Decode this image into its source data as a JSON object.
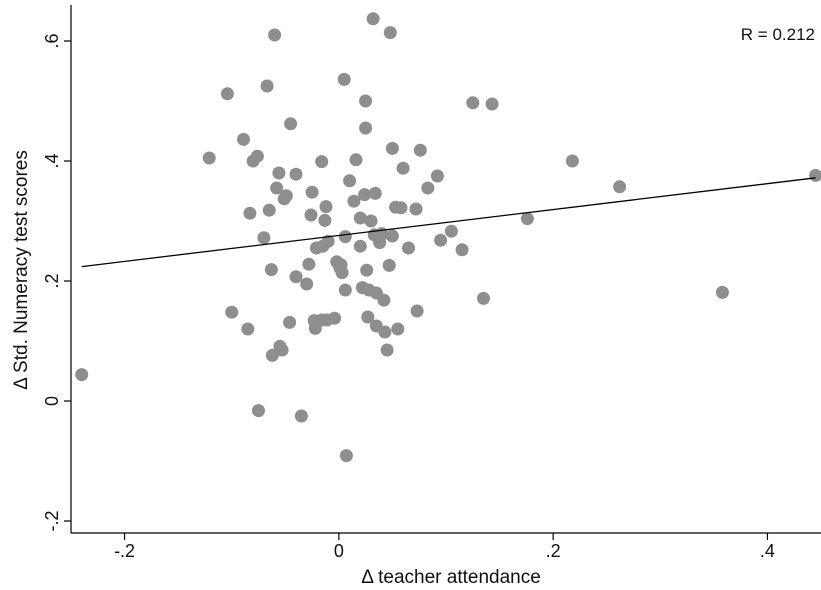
{
  "chart_data": {
    "type": "scatter",
    "title": "",
    "xlabel": "Δ teacher attendance",
    "ylabel": "Δ Std. Numeracy test scores",
    "annotation": "R = 0.212",
    "xlim": [
      -0.25,
      0.45
    ],
    "ylim": [
      -0.22,
      0.66
    ],
    "xticks": [
      -0.2,
      0,
      0.2,
      0.4
    ],
    "xtick_labels": [
      "-.2",
      "0",
      ".2",
      ".4"
    ],
    "yticks": [
      -0.2,
      0,
      0.2,
      0.4,
      0.6
    ],
    "ytick_labels": [
      "-.2",
      "0",
      ".2",
      ".4",
      ".6"
    ],
    "grid": false,
    "legend": "none",
    "colors": {
      "points": "#8e8e8e",
      "fit_line": "#000000",
      "axis": "#000000"
    },
    "fit_line": {
      "x": [
        -0.24,
        0.445
      ],
      "y": [
        0.224,
        0.372
      ]
    },
    "points": [
      [
        -0.24,
        0.044
      ],
      [
        -0.121,
        0.405
      ],
      [
        -0.104,
        0.512
      ],
      [
        -0.1,
        0.148
      ],
      [
        -0.089,
        0.436
      ],
      [
        -0.085,
        0.12
      ],
      [
        -0.083,
        0.313
      ],
      [
        -0.08,
        0.4
      ],
      [
        -0.076,
        0.408
      ],
      [
        -0.075,
        -0.016
      ],
      [
        -0.07,
        0.272
      ],
      [
        -0.067,
        0.525
      ],
      [
        -0.065,
        0.318
      ],
      [
        -0.063,
        0.219
      ],
      [
        -0.062,
        0.076
      ],
      [
        -0.06,
        0.61
      ],
      [
        -0.058,
        0.355
      ],
      [
        -0.056,
        0.38
      ],
      [
        -0.055,
        0.091
      ],
      [
        -0.053,
        0.085
      ],
      [
        -0.051,
        0.337
      ],
      [
        -0.049,
        0.342
      ],
      [
        -0.046,
        0.131
      ],
      [
        -0.045,
        0.462
      ],
      [
        -0.04,
        0.207
      ],
      [
        -0.04,
        0.378
      ],
      [
        -0.035,
        -0.025
      ],
      [
        -0.03,
        0.195
      ],
      [
        -0.028,
        0.228
      ],
      [
        -0.026,
        0.31
      ],
      [
        -0.025,
        0.348
      ],
      [
        -0.023,
        0.134
      ],
      [
        -0.022,
        0.121
      ],
      [
        -0.021,
        0.255
      ],
      [
        -0.016,
        0.399
      ],
      [
        -0.016,
        0.135
      ],
      [
        -0.015,
        0.258
      ],
      [
        -0.013,
        0.301
      ],
      [
        -0.012,
        0.324
      ],
      [
        -0.011,
        0.135
      ],
      [
        -0.01,
        0.266
      ],
      [
        -0.004,
        0.138
      ],
      [
        -0.002,
        0.232
      ],
      [
        0.001,
        0.222
      ],
      [
        0.002,
        0.227
      ],
      [
        0.003,
        0.214
      ],
      [
        0.005,
        0.536
      ],
      [
        0.006,
        0.274
      ],
      [
        0.006,
        0.185
      ],
      [
        0.007,
        -0.091
      ],
      [
        0.01,
        0.367
      ],
      [
        0.014,
        0.333
      ],
      [
        0.016,
        0.402
      ],
      [
        0.02,
        0.258
      ],
      [
        0.02,
        0.305
      ],
      [
        0.022,
        0.189
      ],
      [
        0.024,
        0.344
      ],
      [
        0.025,
        0.5
      ],
      [
        0.025,
        0.455
      ],
      [
        0.026,
        0.218
      ],
      [
        0.027,
        0.14
      ],
      [
        0.028,
        0.185
      ],
      [
        0.03,
        0.3
      ],
      [
        0.032,
        0.637
      ],
      [
        0.033,
        0.277
      ],
      [
        0.034,
        0.346
      ],
      [
        0.035,
        0.18
      ],
      [
        0.035,
        0.125
      ],
      [
        0.038,
        0.264
      ],
      [
        0.039,
        0.275
      ],
      [
        0.04,
        0.279
      ],
      [
        0.042,
        0.168
      ],
      [
        0.043,
        0.115
      ],
      [
        0.045,
        0.085
      ],
      [
        0.047,
        0.226
      ],
      [
        0.048,
        0.614
      ],
      [
        0.05,
        0.421
      ],
      [
        0.05,
        0.275
      ],
      [
        0.053,
        0.323
      ],
      [
        0.055,
        0.12
      ],
      [
        0.058,
        0.322
      ],
      [
        0.06,
        0.388
      ],
      [
        0.065,
        0.255
      ],
      [
        0.072,
        0.32
      ],
      [
        0.073,
        0.15
      ],
      [
        0.076,
        0.418
      ],
      [
        0.083,
        0.355
      ],
      [
        0.092,
        0.375
      ],
      [
        0.095,
        0.268
      ],
      [
        0.105,
        0.283
      ],
      [
        0.115,
        0.252
      ],
      [
        0.125,
        0.497
      ],
      [
        0.135,
        0.171
      ],
      [
        0.143,
        0.495
      ],
      [
        0.176,
        0.304
      ],
      [
        0.218,
        0.4
      ],
      [
        0.262,
        0.357
      ],
      [
        0.358,
        0.181
      ],
      [
        0.445,
        0.376
      ]
    ]
  }
}
